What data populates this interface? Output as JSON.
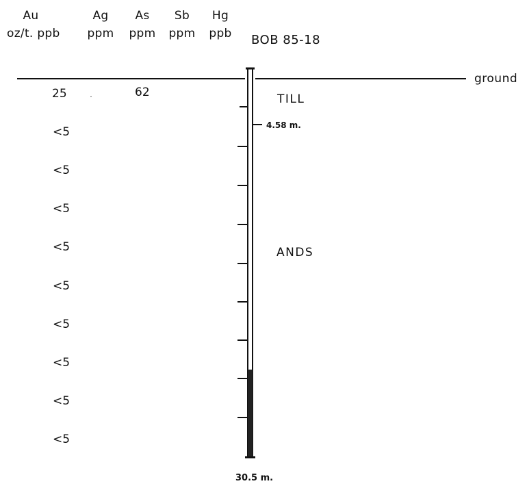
{
  "headers": {
    "au": {
      "element": "Au",
      "unit": "oz/t. ppb"
    },
    "ag": {
      "element": "Ag",
      "unit": "ppm"
    },
    "as": {
      "element": "As",
      "unit": "ppm"
    },
    "sb": {
      "element": "Sb",
      "unit": "ppm"
    },
    "hg": {
      "element": "Hg",
      "unit": "ppb"
    }
  },
  "hole_id": "BOB 85-18",
  "ground_label": "ground",
  "units": [
    {
      "name": "TILL"
    },
    {
      "name": "ANDS"
    }
  ],
  "contact_label": "4.58 m.",
  "depth_label": "30.5 m.",
  "au_values": [
    "25",
    "<5",
    "<5",
    "<5",
    "<5",
    "<5",
    "<5",
    "<5",
    "<5",
    "<5"
  ],
  "as_values": [
    "62"
  ]
}
